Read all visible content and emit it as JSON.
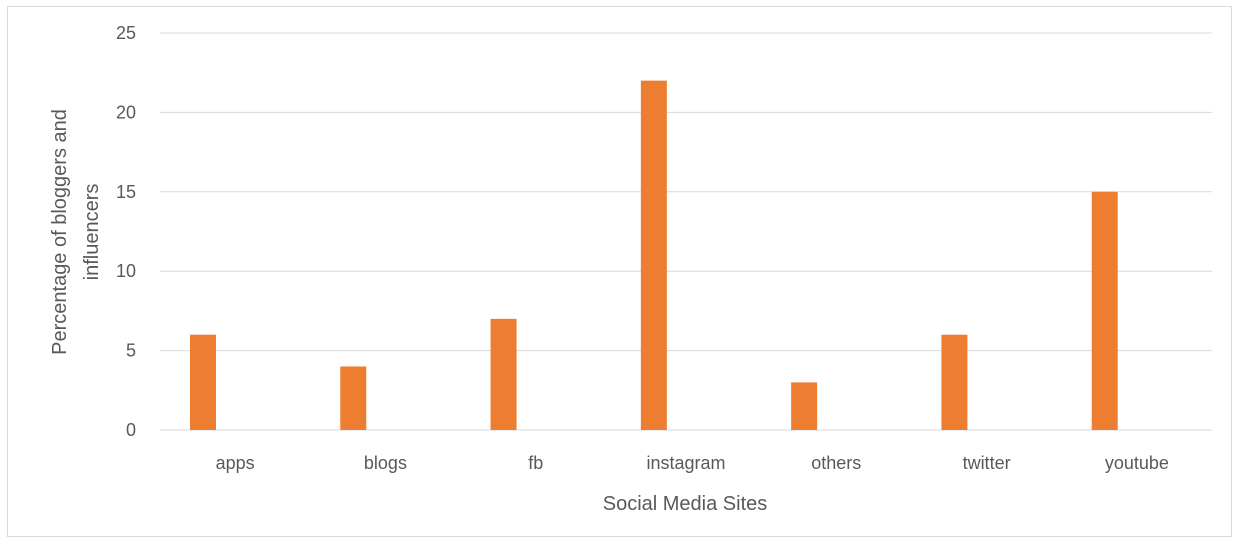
{
  "chart_data": {
    "type": "bar",
    "title": "",
    "xlabel": "Social Media Sites",
    "ylabel_lines": [
      "Percentage of bloggers and",
      "influencers"
    ],
    "categories": [
      "apps",
      "blogs",
      "fb",
      "instagram",
      "others",
      "twitter",
      "youtube"
    ],
    "values": [
      6,
      4,
      7,
      22,
      3,
      6,
      15
    ],
    "ylim": [
      0,
      25
    ],
    "yticks": [
      0,
      5,
      10,
      15,
      20,
      25
    ],
    "grid": true,
    "legend": "none",
    "bar_color": "#ED7D31",
    "grid_color": "#D9D9D9"
  }
}
